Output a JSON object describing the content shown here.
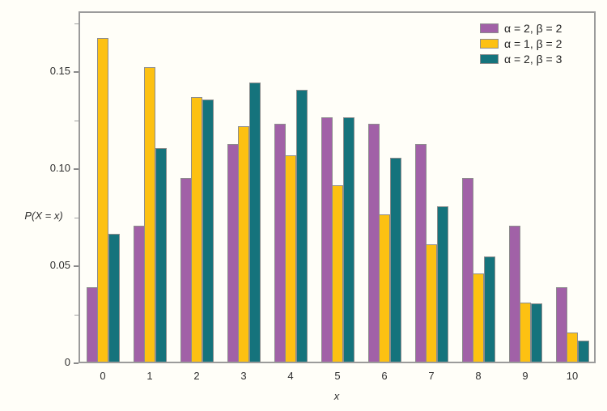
{
  "figure": {
    "background": "#fffef8",
    "frame_color": "#9b9b9b",
    "bar_outline_color": "#8d8d8d",
    "text_color": "#2e2e2e"
  },
  "axes": {
    "x_title": "x",
    "y_title": "P(X = x)",
    "y_ticks": [
      {
        "value": 0,
        "label": "0"
      },
      {
        "value": 0.05,
        "label": "0.05"
      },
      {
        "value": 0.1,
        "label": "0.10"
      },
      {
        "value": 0.15,
        "label": "0.15"
      }
    ],
    "y_minor_ticks": [
      0.025,
      0.075,
      0.125,
      0.175
    ]
  },
  "chart_data": {
    "type": "bar",
    "title": "",
    "xlabel": "x",
    "ylabel": "P(X = x)",
    "ylim": [
      0,
      0.18
    ],
    "grid": false,
    "legend_position": "top-right-inside",
    "categories": [
      "0",
      "1",
      "2",
      "3",
      "4",
      "5",
      "6",
      "7",
      "8",
      "9",
      "10"
    ],
    "series": [
      {
        "name": "α = 2, β = 2",
        "color": "#a161a7",
        "values": [
          0.0385,
          0.0699,
          0.0944,
          0.1119,
          0.1224,
          0.1259,
          0.1224,
          0.1119,
          0.0944,
          0.0699,
          0.0385
        ]
      },
      {
        "name": "α = 1, β = 2",
        "color": "#fdc112",
        "values": [
          0.1667,
          0.1515,
          0.1364,
          0.1212,
          0.1061,
          0.0909,
          0.0758,
          0.0606,
          0.0455,
          0.0303,
          0.0152
        ]
      },
      {
        "name": "α = 2, β = 3",
        "color": "#15737c",
        "values": [
          0.0659,
          0.1099,
          0.1349,
          0.1439,
          0.1399,
          0.1259,
          0.1049,
          0.0799,
          0.054,
          0.03,
          0.011
        ]
      }
    ]
  }
}
